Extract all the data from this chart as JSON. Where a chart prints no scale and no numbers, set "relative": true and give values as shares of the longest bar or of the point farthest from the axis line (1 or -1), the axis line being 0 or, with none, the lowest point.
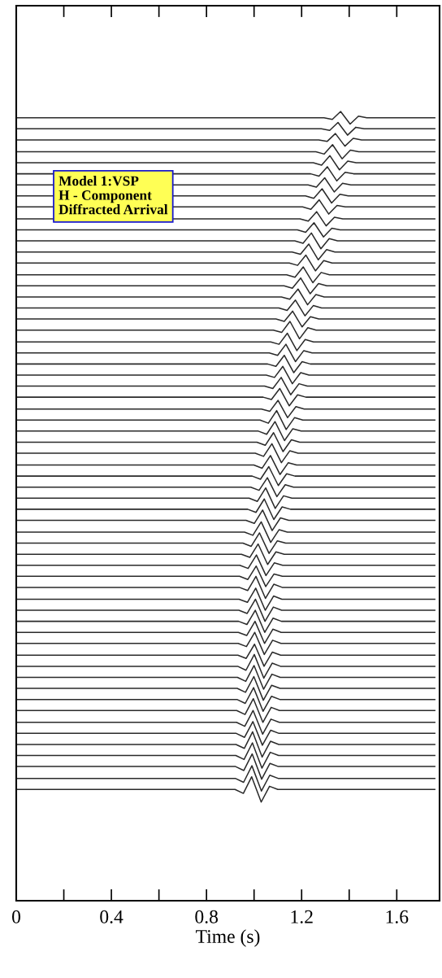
{
  "chart_data": {
    "type": "line",
    "relative": true,
    "xlabel": "Time (s)",
    "color": "#2a2a2a",
    "xlim": [
      0,
      1.78
    ],
    "xticks": [
      0,
      {
        "value": 0.2,
        "label": null
      },
      0.4,
      {
        "value": 0.6,
        "label": null
      },
      0.8,
      {
        "value": 1.0,
        "label": null
      },
      1.2,
      {
        "value": 1.4,
        "label": null
      },
      1.6
    ],
    "tick_labels": "x",
    "grid": false,
    "legend": false,
    "marker": "none",
    "line_style": "solid",
    "annotations": [
      "Model 1:VSP\nH - Component\nDiffracted Arrival"
    ],
    "series": [
      {
        "x": [
          0,
          1.294,
          1.329,
          1.364,
          1.404,
          1.439,
          1.474,
          1.76
        ],
        "values": [
          0.992,
          0.992,
          0.99,
          1.0,
          0.984,
          0.994,
          0.992,
          0.992
        ]
      },
      {
        "x": [
          0,
          1.283,
          1.318,
          1.353,
          1.393,
          1.428,
          1.463,
          1.76
        ],
        "values": [
          0.978,
          0.978,
          0.976,
          0.986,
          0.97,
          0.98,
          0.978,
          0.978
        ]
      },
      {
        "x": [
          0,
          1.272,
          1.307,
          1.342,
          1.382,
          1.417,
          1.452,
          1.76
        ],
        "values": [
          0.964,
          0.964,
          0.962,
          0.972,
          0.956,
          0.966,
          0.964,
          0.964
        ]
      },
      {
        "x": [
          0,
          1.26,
          1.295,
          1.33,
          1.37,
          1.405,
          1.44,
          1.76
        ],
        "values": [
          0.949,
          0.949,
          0.946,
          0.958,
          0.94,
          0.951,
          0.949,
          0.949
        ]
      },
      {
        "x": [
          0,
          1.249,
          1.284,
          1.319,
          1.359,
          1.394,
          1.429,
          1.76
        ],
        "values": [
          0.935,
          0.935,
          0.932,
          0.944,
          0.926,
          0.937,
          0.935,
          0.935
        ]
      },
      {
        "x": [
          0,
          1.238,
          1.273,
          1.308,
          1.348,
          1.383,
          1.418,
          1.76
        ],
        "values": [
          0.921,
          0.921,
          0.918,
          0.93,
          0.912,
          0.923,
          0.921,
          0.921
        ]
      },
      {
        "x": [
          0,
          1.227,
          1.262,
          1.297,
          1.337,
          1.372,
          1.407,
          1.76
        ],
        "values": [
          0.907,
          0.907,
          0.904,
          0.916,
          0.898,
          0.909,
          0.907,
          0.907
        ]
      },
      {
        "x": [
          0,
          1.216,
          1.251,
          1.286,
          1.326,
          1.361,
          1.396,
          1.76
        ],
        "values": [
          0.893,
          0.893,
          0.89,
          0.902,
          0.884,
          0.895,
          0.893,
          0.893
        ]
      },
      {
        "x": [
          0,
          1.204,
          1.239,
          1.274,
          1.314,
          1.349,
          1.384,
          1.76
        ],
        "values": [
          0.879,
          0.879,
          0.876,
          0.888,
          0.87,
          0.881,
          0.879,
          0.879
        ]
      },
      {
        "x": [
          0,
          1.193,
          1.228,
          1.263,
          1.303,
          1.338,
          1.373,
          1.76
        ],
        "values": [
          0.864,
          0.864,
          0.861,
          0.873,
          0.855,
          0.866,
          0.864,
          0.864
        ]
      },
      {
        "x": [
          0,
          1.182,
          1.217,
          1.252,
          1.292,
          1.327,
          1.362,
          1.76
        ],
        "values": [
          0.85,
          0.85,
          0.847,
          0.859,
          0.841,
          0.852,
          0.85,
          0.85
        ]
      },
      {
        "x": [
          0,
          1.171,
          1.206,
          1.241,
          1.281,
          1.316,
          1.351,
          1.76
        ],
        "values": [
          0.836,
          0.836,
          0.833,
          0.846,
          0.826,
          0.839,
          0.836,
          0.836
        ]
      },
      {
        "x": [
          0,
          1.16,
          1.195,
          1.23,
          1.27,
          1.305,
          1.34,
          1.76
        ],
        "values": [
          0.822,
          0.822,
          0.819,
          0.832,
          0.812,
          0.825,
          0.822,
          0.822
        ]
      },
      {
        "x": [
          0,
          1.148,
          1.183,
          1.218,
          1.258,
          1.293,
          1.328,
          1.76
        ],
        "values": [
          0.808,
          0.808,
          0.805,
          0.818,
          0.798,
          0.811,
          0.808,
          0.808
        ]
      },
      {
        "x": [
          0,
          1.137,
          1.172,
          1.207,
          1.247,
          1.282,
          1.317,
          1.76
        ],
        "values": [
          0.793,
          0.793,
          0.79,
          0.803,
          0.783,
          0.796,
          0.793,
          0.793
        ]
      },
      {
        "x": [
          0,
          1.126,
          1.161,
          1.196,
          1.236,
          1.271,
          1.306,
          1.76
        ],
        "values": [
          0.779,
          0.779,
          0.776,
          0.789,
          0.769,
          0.782,
          0.779,
          0.779
        ]
      },
      {
        "x": [
          0,
          1.115,
          1.15,
          1.185,
          1.225,
          1.26,
          1.295,
          1.76
        ],
        "values": [
          0.765,
          0.765,
          0.762,
          0.775,
          0.755,
          0.768,
          0.765,
          0.765
        ]
      },
      {
        "x": [
          0,
          1.104,
          1.139,
          1.174,
          1.214,
          1.249,
          1.284,
          1.76
        ],
        "values": [
          0.751,
          0.751,
          0.748,
          0.761,
          0.741,
          0.754,
          0.751,
          0.751
        ]
      },
      {
        "x": [
          0,
          1.092,
          1.127,
          1.162,
          1.202,
          1.237,
          1.272,
          1.76
        ],
        "values": [
          0.737,
          0.737,
          0.734,
          0.747,
          0.727,
          0.74,
          0.737,
          0.737
        ]
      },
      {
        "x": [
          0,
          1.081,
          1.116,
          1.151,
          1.191,
          1.226,
          1.261,
          1.76
        ],
        "values": [
          0.723,
          0.723,
          0.72,
          0.734,
          0.712,
          0.726,
          0.723,
          0.723
        ]
      },
      {
        "x": [
          0,
          1.07,
          1.105,
          1.14,
          1.18,
          1.215,
          1.25,
          1.76
        ],
        "values": [
          0.708,
          0.708,
          0.705,
          0.719,
          0.697,
          0.711,
          0.708,
          0.708
        ]
      },
      {
        "x": [
          0,
          1.064,
          1.099,
          1.134,
          1.174,
          1.209,
          1.244,
          1.76
        ],
        "values": [
          0.694,
          0.694,
          0.691,
          0.705,
          0.683,
          0.697,
          0.694,
          0.694
        ]
      },
      {
        "x": [
          0,
          1.057,
          1.092,
          1.127,
          1.167,
          1.202,
          1.237,
          1.76
        ],
        "values": [
          0.68,
          0.68,
          0.677,
          0.691,
          0.669,
          0.683,
          0.68,
          0.68
        ]
      },
      {
        "x": [
          0,
          1.051,
          1.086,
          1.121,
          1.161,
          1.196,
          1.231,
          1.76
        ],
        "values": [
          0.666,
          0.666,
          0.663,
          0.677,
          0.655,
          0.669,
          0.666,
          0.666
        ]
      },
      {
        "x": [
          0,
          1.044,
          1.079,
          1.114,
          1.154,
          1.189,
          1.224,
          1.76
        ],
        "values": [
          0.652,
          0.652,
          0.649,
          0.663,
          0.641,
          0.655,
          0.652,
          0.652
        ]
      },
      {
        "x": [
          0,
          1.038,
          1.073,
          1.108,
          1.148,
          1.183,
          1.218,
          1.76
        ],
        "values": [
          0.638,
          0.638,
          0.635,
          0.649,
          0.627,
          0.641,
          0.638,
          0.638
        ]
      },
      {
        "x": [
          0,
          1.031,
          1.066,
          1.101,
          1.141,
          1.176,
          1.211,
          1.76
        ],
        "values": [
          0.623,
          0.623,
          0.62,
          0.634,
          0.612,
          0.626,
          0.623,
          0.623
        ]
      },
      {
        "x": [
          0,
          1.025,
          1.06,
          1.095,
          1.135,
          1.17,
          1.205,
          1.76
        ],
        "values": [
          0.609,
          0.609,
          0.605,
          0.621,
          0.597,
          0.612,
          0.609,
          0.609
        ]
      },
      {
        "x": [
          0,
          1.018,
          1.053,
          1.088,
          1.128,
          1.163,
          1.198,
          1.76
        ],
        "values": [
          0.595,
          0.595,
          0.591,
          0.607,
          0.583,
          0.598,
          0.595,
          0.595
        ]
      },
      {
        "x": [
          0,
          1.012,
          1.047,
          1.082,
          1.122,
          1.157,
          1.192,
          1.76
        ],
        "values": [
          0.581,
          0.581,
          0.577,
          0.593,
          0.569,
          0.584,
          0.581,
          0.581
        ]
      },
      {
        "x": [
          0,
          1.005,
          1.04,
          1.075,
          1.115,
          1.15,
          1.185,
          1.76
        ],
        "values": [
          0.567,
          0.567,
          0.563,
          0.579,
          0.555,
          0.57,
          0.567,
          0.567
        ]
      },
      {
        "x": [
          0,
          0.999,
          1.034,
          1.069,
          1.109,
          1.144,
          1.179,
          1.76
        ],
        "values": [
          0.552,
          0.552,
          0.548,
          0.564,
          0.54,
          0.555,
          0.552,
          0.552
        ]
      },
      {
        "x": [
          0,
          0.992,
          1.027,
          1.062,
          1.102,
          1.137,
          1.172,
          1.76
        ],
        "values": [
          0.538,
          0.538,
          0.534,
          0.55,
          0.526,
          0.541,
          0.538,
          0.538
        ]
      },
      {
        "x": [
          0,
          0.986,
          1.021,
          1.056,
          1.096,
          1.131,
          1.166,
          1.76
        ],
        "values": [
          0.524,
          0.524,
          0.52,
          0.536,
          0.512,
          0.527,
          0.524,
          0.524
        ]
      },
      {
        "x": [
          0,
          0.979,
          1.014,
          1.049,
          1.089,
          1.124,
          1.159,
          1.76
        ],
        "values": [
          0.51,
          0.51,
          0.506,
          0.523,
          0.497,
          0.513,
          0.51,
          0.51
        ]
      },
      {
        "x": [
          0,
          0.973,
          1.008,
          1.043,
          1.083,
          1.118,
          1.153,
          1.76
        ],
        "values": [
          0.496,
          0.496,
          0.492,
          0.509,
          0.483,
          0.499,
          0.496,
          0.496
        ]
      },
      {
        "x": [
          0,
          0.966,
          1.001,
          1.036,
          1.076,
          1.111,
          1.146,
          1.76
        ],
        "values": [
          0.482,
          0.482,
          0.478,
          0.495,
          0.469,
          0.485,
          0.482,
          0.482
        ]
      },
      {
        "x": [
          0,
          0.96,
          0.995,
          1.03,
          1.07,
          1.105,
          1.14,
          1.76
        ],
        "values": [
          0.467,
          0.467,
          0.463,
          0.48,
          0.454,
          0.47,
          0.467,
          0.467
        ]
      },
      {
        "x": [
          0,
          0.953,
          0.988,
          1.023,
          1.063,
          1.098,
          1.133,
          1.76
        ],
        "values": [
          0.453,
          0.453,
          0.449,
          0.466,
          0.44,
          0.456,
          0.453,
          0.453
        ]
      },
      {
        "x": [
          0,
          0.947,
          0.982,
          1.017,
          1.057,
          1.092,
          1.127,
          1.76
        ],
        "values": [
          0.439,
          0.439,
          0.435,
          0.452,
          0.426,
          0.442,
          0.439,
          0.439
        ]
      },
      {
        "x": [
          0,
          0.94,
          0.975,
          1.01,
          1.05,
          1.085,
          1.12,
          1.76
        ],
        "values": [
          0.425,
          0.425,
          0.421,
          0.438,
          0.412,
          0.428,
          0.425,
          0.425
        ]
      },
      {
        "x": [
          0,
          0.939,
          0.974,
          1.009,
          1.049,
          1.084,
          1.119,
          1.76
        ],
        "values": [
          0.411,
          0.411,
          0.407,
          0.424,
          0.398,
          0.414,
          0.411,
          0.411
        ]
      },
      {
        "x": [
          0,
          0.938,
          0.973,
          1.008,
          1.048,
          1.083,
          1.118,
          1.76
        ],
        "values": [
          0.397,
          0.397,
          0.393,
          0.411,
          0.383,
          0.401,
          0.397,
          0.397
        ]
      },
      {
        "x": [
          0,
          0.937,
          0.972,
          1.007,
          1.047,
          1.082,
          1.117,
          1.76
        ],
        "values": [
          0.382,
          0.382,
          0.378,
          0.396,
          0.368,
          0.386,
          0.382,
          0.382
        ]
      },
      {
        "x": [
          0,
          0.936,
          0.971,
          1.006,
          1.046,
          1.081,
          1.116,
          1.76
        ],
        "values": [
          0.368,
          0.368,
          0.364,
          0.382,
          0.354,
          0.372,
          0.368,
          0.368
        ]
      },
      {
        "x": [
          0,
          0.935,
          0.97,
          1.005,
          1.045,
          1.08,
          1.115,
          1.76
        ],
        "values": [
          0.354,
          0.354,
          0.35,
          0.368,
          0.34,
          0.358,
          0.354,
          0.354
        ]
      },
      {
        "x": [
          0,
          0.934,
          0.969,
          1.004,
          1.044,
          1.079,
          1.114,
          1.76
        ],
        "values": [
          0.34,
          0.34,
          0.336,
          0.354,
          0.326,
          0.344,
          0.34,
          0.34
        ]
      },
      {
        "x": [
          0,
          0.933,
          0.968,
          1.003,
          1.043,
          1.078,
          1.113,
          1.76
        ],
        "values": [
          0.326,
          0.326,
          0.322,
          0.34,
          0.312,
          0.33,
          0.326,
          0.326
        ]
      },
      {
        "x": [
          0,
          0.932,
          0.967,
          1.002,
          1.042,
          1.077,
          1.112,
          1.76
        ],
        "values": [
          0.311,
          0.311,
          0.307,
          0.325,
          0.297,
          0.315,
          0.311,
          0.311
        ]
      },
      {
        "x": [
          0,
          0.931,
          0.966,
          1.001,
          1.041,
          1.076,
          1.111,
          1.76
        ],
        "values": [
          0.297,
          0.297,
          0.292,
          0.312,
          0.282,
          0.301,
          0.297,
          0.297
        ]
      },
      {
        "x": [
          0,
          0.93,
          0.965,
          1.0,
          1.04,
          1.075,
          1.11,
          1.76
        ],
        "values": [
          0.283,
          0.283,
          0.278,
          0.298,
          0.268,
          0.287,
          0.283,
          0.283
        ]
      },
      {
        "x": [
          0,
          0.929,
          0.964,
          0.999,
          1.039,
          1.074,
          1.109,
          1.76
        ],
        "values": [
          0.269,
          0.269,
          0.264,
          0.284,
          0.254,
          0.273,
          0.269,
          0.269
        ]
      },
      {
        "x": [
          0,
          0.928,
          0.963,
          0.998,
          1.038,
          1.073,
          1.108,
          1.76
        ],
        "values": [
          0.255,
          0.255,
          0.25,
          0.27,
          0.24,
          0.259,
          0.255,
          0.255
        ]
      },
      {
        "x": [
          0,
          0.927,
          0.962,
          0.997,
          1.037,
          1.072,
          1.107,
          1.76
        ],
        "values": [
          0.241,
          0.241,
          0.236,
          0.256,
          0.226,
          0.245,
          0.241,
          0.241
        ]
      },
      {
        "x": [
          0,
          0.926,
          0.961,
          0.996,
          1.036,
          1.071,
          1.106,
          1.76
        ],
        "values": [
          0.226,
          0.226,
          0.221,
          0.241,
          0.211,
          0.23,
          0.226,
          0.226
        ]
      },
      {
        "x": [
          0,
          0.925,
          0.96,
          0.995,
          1.035,
          1.07,
          1.105,
          1.76
        ],
        "values": [
          0.212,
          0.212,
          0.207,
          0.227,
          0.197,
          0.216,
          0.212,
          0.212
        ]
      },
      {
        "x": [
          0,
          0.924,
          0.959,
          0.994,
          1.034,
          1.069,
          1.104,
          1.76
        ],
        "values": [
          0.198,
          0.198,
          0.193,
          0.214,
          0.182,
          0.202,
          0.198,
          0.198
        ]
      },
      {
        "x": [
          0,
          0.923,
          0.958,
          0.993,
          1.033,
          1.068,
          1.103,
          1.76
        ],
        "values": [
          0.184,
          0.184,
          0.179,
          0.2,
          0.168,
          0.188,
          0.184,
          0.184
        ]
      },
      {
        "x": [
          0,
          0.922,
          0.957,
          0.992,
          1.032,
          1.067,
          1.102,
          1.76
        ],
        "values": [
          0.17,
          0.17,
          0.165,
          0.186,
          0.154,
          0.174,
          0.17,
          0.17
        ]
      },
      {
        "x": [
          0,
          0.921,
          0.956,
          0.991,
          1.031,
          1.066,
          1.101,
          1.76
        ],
        "values": [
          0.155,
          0.155,
          0.15,
          0.171,
          0.139,
          0.159,
          0.155,
          0.155
        ]
      },
      {
        "x": [
          0,
          0.92,
          0.955,
          0.99,
          1.03,
          1.065,
          1.1,
          1.76
        ],
        "values": [
          0.141,
          0.141,
          0.136,
          0.157,
          0.125,
          0.145,
          0.141,
          0.141
        ]
      }
    ]
  }
}
